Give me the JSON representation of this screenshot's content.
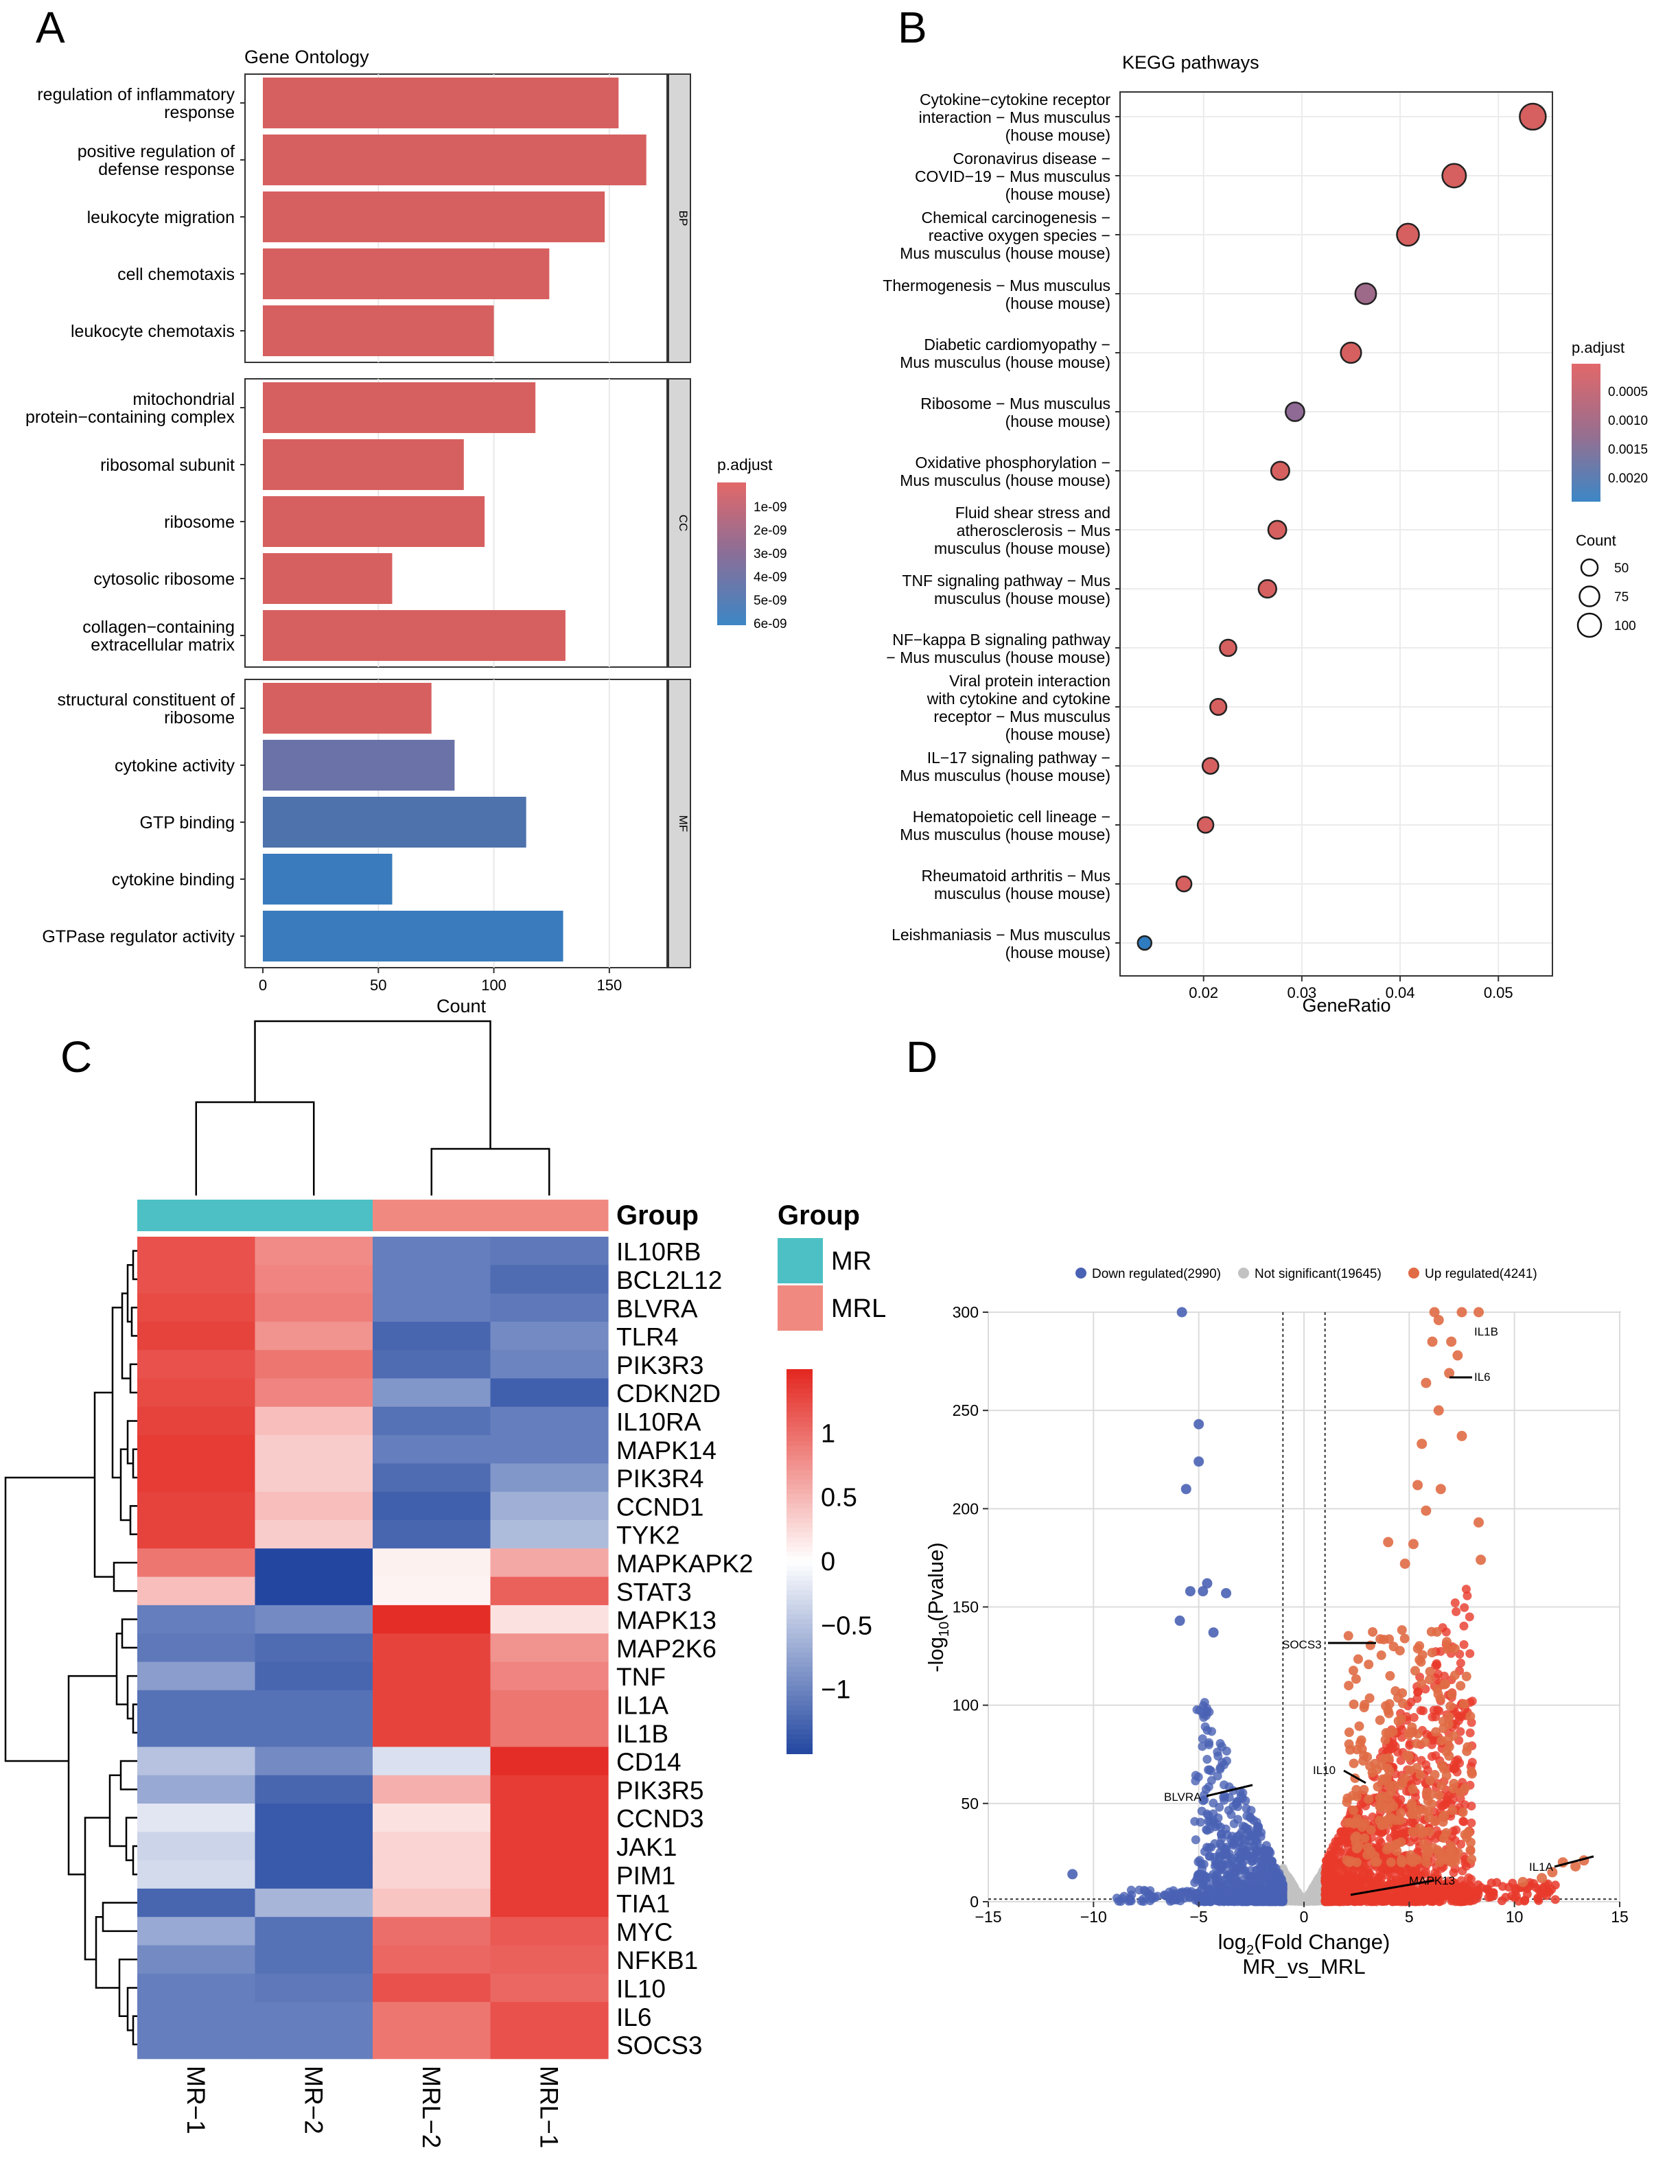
{
  "panels": {
    "a": "A",
    "b": "B",
    "c": "C",
    "d": "D"
  },
  "chart_data": [
    {
      "panel": "A",
      "type": "bar",
      "orientation": "horizontal",
      "title": "Gene Ontology",
      "xlabel": "Count",
      "xlim": [
        0,
        175
      ],
      "xticks": [
        0,
        50,
        100,
        150
      ],
      "legend": {
        "title": "p.adjust",
        "labels": [
          "1e-09",
          "2e-09",
          "3e-09",
          "4e-09",
          "5e-09",
          "6e-09"
        ],
        "placement": "right"
      },
      "facets": [
        {
          "name": "BP",
          "terms": [
            {
              "label": [
                "regulation of inflammatory",
                "response"
              ],
              "value": 154,
              "color": "#d6605f"
            },
            {
              "label": [
                "positive regulation of",
                "defense response"
              ],
              "value": 166,
              "color": "#d6605f"
            },
            {
              "label": [
                "leukocyte migration"
              ],
              "value": 148,
              "color": "#d6605f"
            },
            {
              "label": [
                "cell chemotaxis"
              ],
              "value": 124,
              "color": "#d6605f"
            },
            {
              "label": [
                "leukocyte chemotaxis"
              ],
              "value": 100,
              "color": "#d6605f"
            }
          ]
        },
        {
          "name": "CC",
          "terms": [
            {
              "label": [
                "mitochondrial",
                "protein−containing complex"
              ],
              "value": 118,
              "color": "#d6605f"
            },
            {
              "label": [
                "ribosomal subunit"
              ],
              "value": 87,
              "color": "#d6605f"
            },
            {
              "label": [
                "ribosome"
              ],
              "value": 96,
              "color": "#d6605f"
            },
            {
              "label": [
                "cytosolic ribosome"
              ],
              "value": 56,
              "color": "#d6605f"
            },
            {
              "label": [
                "collagen−containing",
                "extracellular matrix"
              ],
              "value": 131,
              "color": "#d6605f"
            }
          ]
        },
        {
          "name": "MF",
          "terms": [
            {
              "label": [
                "structural constituent of",
                "ribosome"
              ],
              "value": 73,
              "color": "#d6605f"
            },
            {
              "label": [
                "cytokine activity"
              ],
              "value": 83,
              "color": "#6a72a8"
            },
            {
              "label": [
                "GTP binding"
              ],
              "value": 114,
              "color": "#4d72ac"
            },
            {
              "label": [
                "cytokine binding"
              ],
              "value": 56,
              "color": "#3a7bbd"
            },
            {
              "label": [
                "GTPase regulator activity"
              ],
              "value": 130,
              "color": "#3a7bbd"
            }
          ]
        }
      ]
    },
    {
      "panel": "B",
      "type": "scatter",
      "title": "KEGG pathways",
      "xlabel": "GeneRatio",
      "xlim": [
        0.0115,
        0.0555
      ],
      "xticks": [
        0.02,
        0.03,
        0.04,
        0.05
      ],
      "xtick_labels": [
        "0.02",
        "0.03",
        "0.04",
        "0.05"
      ],
      "color_legend": {
        "title": "p.adjust",
        "labels": [
          "0.0005",
          "0.0010",
          "0.0015",
          "0.0020"
        ]
      },
      "size_legend": {
        "title": "Count",
        "labels": [
          "50",
          "75",
          "100"
        ]
      },
      "points": [
        {
          "label": [
            "Cytokine−cytokine receptor",
            "interaction − Mus musculus",
            "(house mouse)"
          ],
          "x": 0.0535,
          "count": 108,
          "color": "#d6605f"
        },
        {
          "label": [
            "Coronavirus disease −",
            "COVID−19 − Mus musculus",
            "(house mouse)"
          ],
          "x": 0.0455,
          "count": 92,
          "color": "#d6605f"
        },
        {
          "label": [
            "Chemical carcinogenesis −",
            "reactive oxygen species −",
            "Mus musculus (house mouse)"
          ],
          "x": 0.0408,
          "count": 82,
          "color": "#d6605f"
        },
        {
          "label": [
            "Thermogenesis − Mus musculus",
            "(house mouse)"
          ],
          "x": 0.0365,
          "count": 74,
          "color": "#9e6a8a"
        },
        {
          "label": [
            "Diabetic cardiomyopathy −",
            "Mus musculus (house mouse)"
          ],
          "x": 0.035,
          "count": 71,
          "color": "#d6605f"
        },
        {
          "label": [
            "Ribosome − Mus musculus",
            "(house mouse)"
          ],
          "x": 0.0293,
          "count": 60,
          "color": "#8e6a94"
        },
        {
          "label": [
            "Oxidative phosphorylation −",
            "Mus musculus (house mouse)"
          ],
          "x": 0.0278,
          "count": 57,
          "color": "#d6605f"
        },
        {
          "label": [
            "Fluid shear stress and",
            "atherosclerosis − Mus",
            "musculus (house mouse)"
          ],
          "x": 0.0275,
          "count": 56,
          "color": "#d6605f"
        },
        {
          "label": [
            "TNF signaling pathway − Mus",
            "musculus (house mouse)"
          ],
          "x": 0.0265,
          "count": 54,
          "color": "#d6605f"
        },
        {
          "label": [
            "NF−kappa B signaling pathway",
            "− Mus musculus (house mouse)"
          ],
          "x": 0.0225,
          "count": 46,
          "color": "#d6605f"
        },
        {
          "label": [
            "Viral protein interaction",
            "with cytokine and cytokine",
            "receptor − Mus musculus",
            "(house mouse)"
          ],
          "x": 0.0215,
          "count": 44,
          "color": "#d6605f"
        },
        {
          "label": [
            "IL−17 signaling pathway −",
            "Mus musculus (house mouse)"
          ],
          "x": 0.0207,
          "count": 42,
          "color": "#d6605f"
        },
        {
          "label": [
            "Hematopoietic cell lineage −",
            "Mus musculus (house mouse)"
          ],
          "x": 0.0202,
          "count": 41,
          "color": "#d6605f"
        },
        {
          "label": [
            "Rheumatoid arthritis − Mus",
            "musculus (house mouse)"
          ],
          "x": 0.018,
          "count": 37,
          "color": "#d6605f"
        },
        {
          "label": [
            "Leishmaniasis − Mus musculus",
            "(house mouse)"
          ],
          "x": 0.014,
          "count": 28,
          "color": "#2f7cc0"
        }
      ]
    },
    {
      "panel": "C",
      "type": "heatmap",
      "columns": [
        "MR−1",
        "MR−2",
        "MRL−2",
        "MRL−1"
      ],
      "groups": [
        "MR",
        "MR",
        "MRL",
        "MRL"
      ],
      "group_colors": {
        "MR": "#4cc0c5",
        "MRL": "#f08a80"
      },
      "annotation_label": "Group",
      "group_legend": {
        "title": "Group",
        "items": [
          "MR",
          "MRL"
        ]
      },
      "color_scale": {
        "min": -1.5,
        "max": 1.5,
        "tick_values": [
          1,
          0.5,
          0,
          -0.5,
          -1
        ],
        "tick_labels": [
          "1",
          "0.5",
          "0",
          "−0.5",
          "−1"
        ]
      },
      "rows": [
        "IL10RB",
        "BCL2L12",
        "BLVRA",
        "TLR4",
        "PIK3R3",
        "CDKN2D",
        "IL10RA",
        "MAPK14",
        "PIK3R4",
        "CCND1",
        "TYK2",
        "MAPKAPK2",
        "STAT3",
        "MAPK13",
        "MAP2K6",
        "TNF",
        "IL1A",
        "IL1B",
        "CD14",
        "PIK3R5",
        "CCND3",
        "JAK1",
        "PIM1",
        "TIA1",
        "MYC",
        "NFKB1",
        "IL10",
        "IL6",
        "SOCS3"
      ],
      "values": [
        [
          1.2,
          0.8,
          -1.05,
          -1.1
        ],
        [
          1.2,
          0.85,
          -1.05,
          -1.2
        ],
        [
          1.25,
          0.9,
          -1.05,
          -1.1
        ],
        [
          1.3,
          0.75,
          -1.25,
          -0.95
        ],
        [
          1.2,
          0.95,
          -1.2,
          -1.0
        ],
        [
          1.25,
          0.85,
          -0.85,
          -1.3
        ],
        [
          1.3,
          0.45,
          -1.15,
          -1.05
        ],
        [
          1.35,
          0.35,
          -1.05,
          -1.05
        ],
        [
          1.35,
          0.35,
          -1.2,
          -0.85
        ],
        [
          1.3,
          0.45,
          -1.3,
          -0.65
        ],
        [
          1.3,
          0.35,
          -1.25,
          -0.55
        ],
        [
          0.95,
          -1.5,
          0.1,
          0.6
        ],
        [
          0.45,
          -1.5,
          0.08,
          1.1
        ],
        [
          -1.05,
          -0.95,
          1.45,
          0.2
        ],
        [
          -1.1,
          -1.2,
          1.3,
          0.75
        ],
        [
          -0.8,
          -1.25,
          1.3,
          0.85
        ],
        [
          -1.15,
          -1.15,
          1.3,
          0.95
        ],
        [
          -1.15,
          -1.15,
          1.3,
          0.95
        ],
        [
          -0.5,
          -0.95,
          -0.25,
          1.45
        ],
        [
          -0.7,
          -1.25,
          0.55,
          1.35
        ],
        [
          -0.2,
          -1.35,
          0.2,
          1.35
        ],
        [
          -0.35,
          -1.35,
          0.3,
          1.35
        ],
        [
          -0.3,
          -1.35,
          0.3,
          1.35
        ],
        [
          -1.25,
          -0.6,
          0.4,
          1.35
        ],
        [
          -0.7,
          -1.15,
          1.0,
          1.15
        ],
        [
          -0.95,
          -1.15,
          1.05,
          1.1
        ],
        [
          -1.05,
          -1.1,
          1.2,
          1.05
        ],
        [
          -1.05,
          -1.05,
          0.95,
          1.2
        ],
        [
          -1.05,
          -1.05,
          0.95,
          1.2
        ]
      ]
    },
    {
      "panel": "D",
      "type": "scatter",
      "subtype": "volcano",
      "xlabel_parts": [
        "log",
        "2",
        "(Fold Change)"
      ],
      "xlabel2": "MR_vs_MRL",
      "ylabel_parts": [
        "-log",
        "10",
        "(Pvalue)"
      ],
      "xlim": [
        -15,
        15
      ],
      "ylim": [
        0,
        300
      ],
      "xticks": [
        -15,
        -10,
        -5,
        0,
        5,
        10,
        15
      ],
      "xtick_labels": [
        "−15",
        "−10",
        "−5",
        "0",
        "5",
        "10",
        "15"
      ],
      "yticks": [
        0,
        50,
        100,
        150,
        200,
        250,
        300
      ],
      "legend": [
        {
          "label": "Down regulated(2990)",
          "color": "#4a62b4"
        },
        {
          "label": "Not significant(19645)",
          "color": "#c2c2c2"
        },
        {
          "label": "Up regulated(4241)",
          "color": "#e06b45"
        }
      ],
      "thresholds": {
        "fold_change": [
          -1,
          1
        ],
        "pvalue_line": 1.3
      },
      "labeled_genes": [
        {
          "gene": "IL1B",
          "x": 7.7,
          "y": 300
        },
        {
          "gene": "IL6",
          "x": 6.8,
          "y": 269
        },
        {
          "gene": "SOCS3",
          "x": 4.6,
          "y": 132
        },
        {
          "gene": "IL10",
          "x": 2.8,
          "y": 62
        },
        {
          "gene": "BLVRA",
          "x": -2.4,
          "y": 62
        },
        {
          "gene": "MAPK13",
          "x": 3.6,
          "y": 14
        },
        {
          "gene": "IL1A",
          "x": 13.5,
          "y": 25
        }
      ],
      "outlier_points": [
        {
          "x": -5.8,
          "y": 300
        },
        {
          "x": -5.0,
          "y": 243
        },
        {
          "x": -5.0,
          "y": 224
        },
        {
          "x": -5.6,
          "y": 210
        },
        {
          "x": -4.6,
          "y": 162
        },
        {
          "x": -5.4,
          "y": 158
        },
        {
          "x": -4.8,
          "y": 158
        },
        {
          "x": -3.7,
          "y": 157
        },
        {
          "x": -5.9,
          "y": 143
        },
        {
          "x": -4.3,
          "y": 137
        },
        {
          "x": -11.0,
          "y": 14
        },
        {
          "x": 6.2,
          "y": 300
        },
        {
          "x": 7.5,
          "y": 300
        },
        {
          "x": 8.3,
          "y": 300
        },
        {
          "x": 6.4,
          "y": 296
        },
        {
          "x": 6.1,
          "y": 285
        },
        {
          "x": 7.0,
          "y": 285
        },
        {
          "x": 7.3,
          "y": 278
        },
        {
          "x": 5.8,
          "y": 264
        },
        {
          "x": 6.9,
          "y": 269
        },
        {
          "x": 6.4,
          "y": 250
        },
        {
          "x": 7.5,
          "y": 237
        },
        {
          "x": 5.6,
          "y": 233
        },
        {
          "x": 6.5,
          "y": 210
        },
        {
          "x": 5.4,
          "y": 212
        },
        {
          "x": 8.3,
          "y": 193
        },
        {
          "x": 5.8,
          "y": 199
        },
        {
          "x": 8.4,
          "y": 174
        },
        {
          "x": 5.2,
          "y": 182
        },
        {
          "x": 4.0,
          "y": 183
        },
        {
          "x": 4.8,
          "y": 172
        },
        {
          "x": 11.8,
          "y": 15
        },
        {
          "x": 12.3,
          "y": 20
        },
        {
          "x": 12.9,
          "y": 18
        },
        {
          "x": 13.3,
          "y": 21
        },
        {
          "x": 10.4,
          "y": 10
        },
        {
          "x": 11.3,
          "y": 12
        }
      ]
    }
  ]
}
